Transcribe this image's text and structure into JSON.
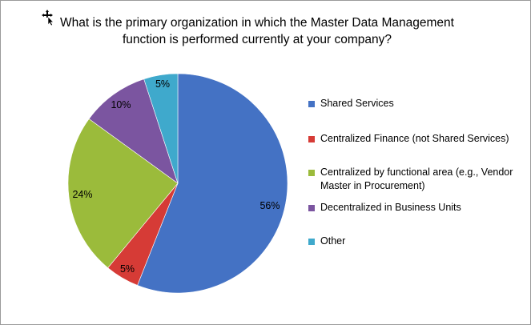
{
  "chart_data": {
    "type": "pie",
    "title": "What is the primary organization in which the Master Data Management function is performed currently at your company?",
    "title_lines": [
      "What is the primary organization in which the Master Data Management",
      "function is performed currently at your company?"
    ],
    "slices": [
      {
        "name": "Shared Services",
        "value": 56,
        "label": "56%",
        "color": "#4472C4"
      },
      {
        "name": "Centralized Finance (not Shared Services)",
        "value": 5,
        "label": "5%",
        "color": "#D63B36"
      },
      {
        "name": "Centralized by functional area (e.g., Vendor Master in Procurement)",
        "value": 24,
        "label": "24%",
        "color": "#9BBB3B"
      },
      {
        "name": "Decentralized in Business Units",
        "value": 10,
        "label": "10%",
        "color": "#7B55A0"
      },
      {
        "name": "Other",
        "value": 5,
        "label": "5%",
        "color": "#3FA9CC"
      }
    ],
    "legend_lines": [
      [
        "Shared Services"
      ],
      [
        "Centralized Finance (not Shared Services)"
      ],
      [
        "Centralized by functional area (e.g., Vendor",
        "Master in Procurement)"
      ],
      [
        "Decentralized in Business Units"
      ],
      [
        "Other"
      ]
    ],
    "legend_placement": "right",
    "start_angle_deg": 0,
    "direction": "clockwise"
  }
}
